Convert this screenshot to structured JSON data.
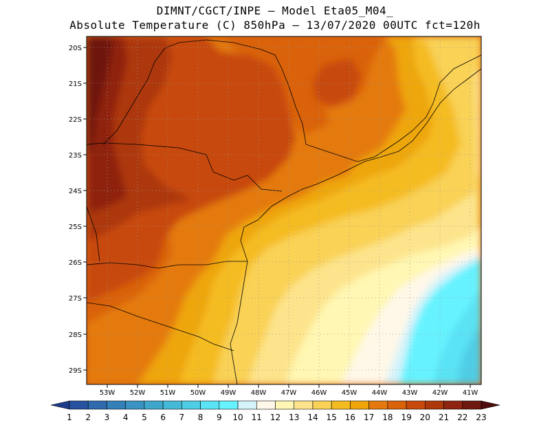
{
  "header": {
    "line1": "DIMNT/CGCT/INPE –  Model Eta05_M04_",
    "line2": "Absolute Temperature (C) 850hPa –  13/07/2020 00UTC fct=120h"
  },
  "axes": {
    "lat_labels": [
      "20S",
      "21S",
      "22S",
      "23S",
      "24S",
      "25S",
      "26S",
      "27S",
      "28S",
      "29S"
    ],
    "lon_labels": [
      "53W",
      "52W",
      "51W",
      "50W",
      "49W",
      "48W",
      "47W",
      "46W",
      "45W",
      "44W",
      "43W",
      "42W",
      "41W"
    ]
  },
  "colorbar": {
    "labels": [
      "1",
      "2",
      "3",
      "4",
      "5",
      "6",
      "7",
      "8",
      "9",
      "10",
      "11",
      "12",
      "13",
      "14",
      "15",
      "16",
      "17",
      "18",
      "19",
      "20",
      "21",
      "22",
      "23"
    ],
    "colors": [
      "#1e3c8c",
      "#27529f",
      "#2f6aad",
      "#3580b9",
      "#3a93c2",
      "#3fa7cc",
      "#45bad8",
      "#4fcde6",
      "#5ae2f5",
      "#66f3ff",
      "#d4f3fb",
      "#fff8e8",
      "#fff7b3",
      "#fde48c",
      "#f9d257",
      "#f5bc22",
      "#eea60a",
      "#e47a0f",
      "#d9620b",
      "#c74a0a",
      "#ad380a",
      "#8f2410",
      "#6e1810",
      "#4e0b0b"
    ]
  },
  "legend_colors": {
    "low": "#5ae2f5",
    "mid_low": "#fff8e8",
    "mid": "#f9d257",
    "mid_high": "#e47a0f",
    "high": "#8f2410"
  }
}
